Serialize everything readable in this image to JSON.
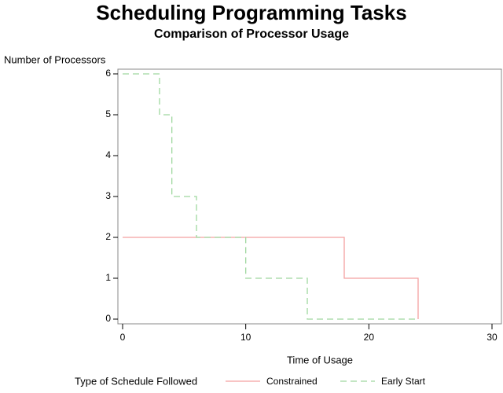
{
  "chart_data": {
    "type": "step",
    "title": "Scheduling Programming Tasks",
    "subtitle": "Comparison of Processor Usage",
    "y_label": "Number of Processors",
    "x_label": "Time of Usage",
    "legend_title": "Type of Schedule Followed",
    "legend_position": "bottom",
    "xlim": [
      0,
      30
    ],
    "xticks": [
      0,
      10,
      20,
      30
    ],
    "ylim": [
      0,
      6
    ],
    "yticks": [
      0,
      1,
      2,
      3,
      4,
      5,
      6
    ],
    "series": [
      {
        "name": "Constrained",
        "color": "#f4a0a0",
        "dash": false,
        "x": [
          0,
          18,
          24
        ],
        "values": [
          2,
          1,
          0
        ]
      },
      {
        "name": "Early Start",
        "color": "#9fd89f",
        "dash": true,
        "x": [
          0,
          3,
          4,
          6,
          10,
          15,
          24
        ],
        "values": [
          6,
          5,
          3,
          2,
          1,
          0,
          0
        ]
      }
    ]
  }
}
